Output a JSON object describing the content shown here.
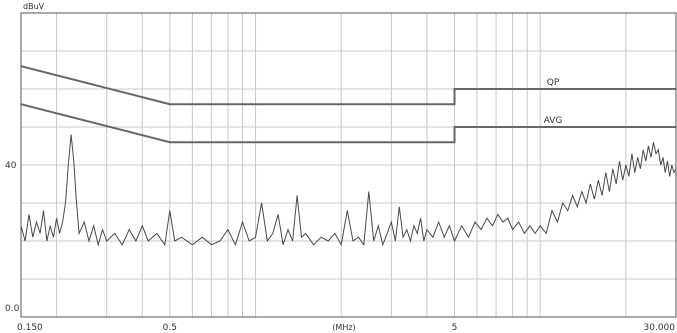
{
  "chart_data": {
    "type": "line",
    "title": "",
    "ylabel": "dBuV",
    "xlabel": "(MHz)",
    "x_scale": "log",
    "xlim": [
      0.15,
      30
    ],
    "ylim": [
      0,
      80
    ],
    "grid": true,
    "x_ticks": [
      {
        "value": 0.15,
        "label": "0.150"
      },
      {
        "value": 0.5,
        "label": "0.5"
      },
      {
        "value": 5,
        "label": "5"
      },
      {
        "value": 30,
        "label": "30.000"
      }
    ],
    "y_ticks": [
      {
        "value": 40,
        "label": "40"
      },
      {
        "value": 0,
        "label": "0.0"
      }
    ],
    "limits": [
      {
        "name": "QP",
        "points": [
          [
            0.15,
            66
          ],
          [
            0.5,
            56
          ],
          [
            5,
            56
          ],
          [
            5,
            60
          ],
          [
            30,
            60
          ]
        ]
      },
      {
        "name": "AVG",
        "points": [
          [
            0.15,
            56
          ],
          [
            0.5,
            46
          ],
          [
            5,
            46
          ],
          [
            5,
            50
          ],
          [
            30,
            50
          ]
        ]
      }
    ],
    "series": [
      {
        "values": [
          [
            0.15,
            24
          ],
          [
            0.155,
            20
          ],
          [
            0.16,
            27
          ],
          [
            0.165,
            21
          ],
          [
            0.17,
            25
          ],
          [
            0.175,
            22
          ],
          [
            0.18,
            28
          ],
          [
            0.185,
            20
          ],
          [
            0.19,
            24
          ],
          [
            0.195,
            21
          ],
          [
            0.2,
            26
          ],
          [
            0.205,
            22
          ],
          [
            0.21,
            25
          ],
          [
            0.215,
            30
          ],
          [
            0.22,
            40
          ],
          [
            0.225,
            48
          ],
          [
            0.23,
            41
          ],
          [
            0.235,
            30
          ],
          [
            0.24,
            22
          ],
          [
            0.25,
            25
          ],
          [
            0.26,
            20
          ],
          [
            0.27,
            24
          ],
          [
            0.28,
            19
          ],
          [
            0.29,
            23
          ],
          [
            0.3,
            20
          ],
          [
            0.32,
            22
          ],
          [
            0.34,
            19
          ],
          [
            0.36,
            23
          ],
          [
            0.38,
            20
          ],
          [
            0.4,
            24
          ],
          [
            0.42,
            20
          ],
          [
            0.45,
            22
          ],
          [
            0.48,
            19
          ],
          [
            0.5,
            28
          ],
          [
            0.52,
            20
          ],
          [
            0.55,
            21
          ],
          [
            0.6,
            19
          ],
          [
            0.65,
            21
          ],
          [
            0.7,
            19
          ],
          [
            0.75,
            20
          ],
          [
            0.8,
            23
          ],
          [
            0.85,
            19
          ],
          [
            0.9,
            25
          ],
          [
            0.95,
            20
          ],
          [
            1.0,
            21
          ],
          [
            1.05,
            30
          ],
          [
            1.1,
            20
          ],
          [
            1.15,
            22
          ],
          [
            1.2,
            27
          ],
          [
            1.25,
            19
          ],
          [
            1.3,
            23
          ],
          [
            1.35,
            20
          ],
          [
            1.4,
            32
          ],
          [
            1.45,
            21
          ],
          [
            1.5,
            22
          ],
          [
            1.6,
            19
          ],
          [
            1.7,
            21
          ],
          [
            1.8,
            20
          ],
          [
            1.9,
            22
          ],
          [
            2.0,
            19
          ],
          [
            2.1,
            28
          ],
          [
            2.2,
            20
          ],
          [
            2.3,
            21
          ],
          [
            2.4,
            19
          ],
          [
            2.5,
            33
          ],
          [
            2.6,
            20
          ],
          [
            2.7,
            24
          ],
          [
            2.8,
            19
          ],
          [
            2.9,
            22
          ],
          [
            3.0,
            25
          ],
          [
            3.1,
            20
          ],
          [
            3.2,
            29
          ],
          [
            3.3,
            21
          ],
          [
            3.4,
            23
          ],
          [
            3.5,
            20
          ],
          [
            3.6,
            24
          ],
          [
            3.7,
            22
          ],
          [
            3.8,
            26
          ],
          [
            3.9,
            20
          ],
          [
            4.0,
            23
          ],
          [
            4.2,
            21
          ],
          [
            4.4,
            25
          ],
          [
            4.6,
            21
          ],
          [
            4.8,
            24
          ],
          [
            5.0,
            20
          ],
          [
            5.3,
            24
          ],
          [
            5.6,
            21
          ],
          [
            5.9,
            25
          ],
          [
            6.2,
            23
          ],
          [
            6.5,
            26
          ],
          [
            6.8,
            24
          ],
          [
            7.1,
            27
          ],
          [
            7.4,
            25
          ],
          [
            7.7,
            26
          ],
          [
            8.0,
            23
          ],
          [
            8.4,
            25
          ],
          [
            8.8,
            22
          ],
          [
            9.2,
            24
          ],
          [
            9.6,
            22
          ],
          [
            10.0,
            24
          ],
          [
            10.5,
            22
          ],
          [
            11.0,
            28
          ],
          [
            11.5,
            25
          ],
          [
            12.0,
            30
          ],
          [
            12.5,
            28
          ],
          [
            13.0,
            32
          ],
          [
            13.5,
            29
          ],
          [
            14.0,
            33
          ],
          [
            14.5,
            30
          ],
          [
            15.0,
            35
          ],
          [
            15.5,
            31
          ],
          [
            16.0,
            36
          ],
          [
            16.5,
            32
          ],
          [
            17.0,
            38
          ],
          [
            17.5,
            33
          ],
          [
            18.0,
            39
          ],
          [
            18.5,
            35
          ],
          [
            19.0,
            41
          ],
          [
            19.5,
            36
          ],
          [
            20.0,
            40
          ],
          [
            20.5,
            37
          ],
          [
            21.0,
            43
          ],
          [
            21.5,
            38
          ],
          [
            22.0,
            42
          ],
          [
            22.5,
            39
          ],
          [
            23.0,
            44
          ],
          [
            23.5,
            41
          ],
          [
            24.0,
            45
          ],
          [
            24.5,
            42
          ],
          [
            25.0,
            46
          ],
          [
            25.5,
            43
          ],
          [
            26.0,
            44
          ],
          [
            26.5,
            40
          ],
          [
            27.0,
            42
          ],
          [
            27.5,
            38
          ],
          [
            28.0,
            41
          ],
          [
            28.5,
            37
          ],
          [
            29.0,
            40
          ],
          [
            29.5,
            38
          ],
          [
            30.0,
            39
          ]
        ]
      }
    ]
  }
}
